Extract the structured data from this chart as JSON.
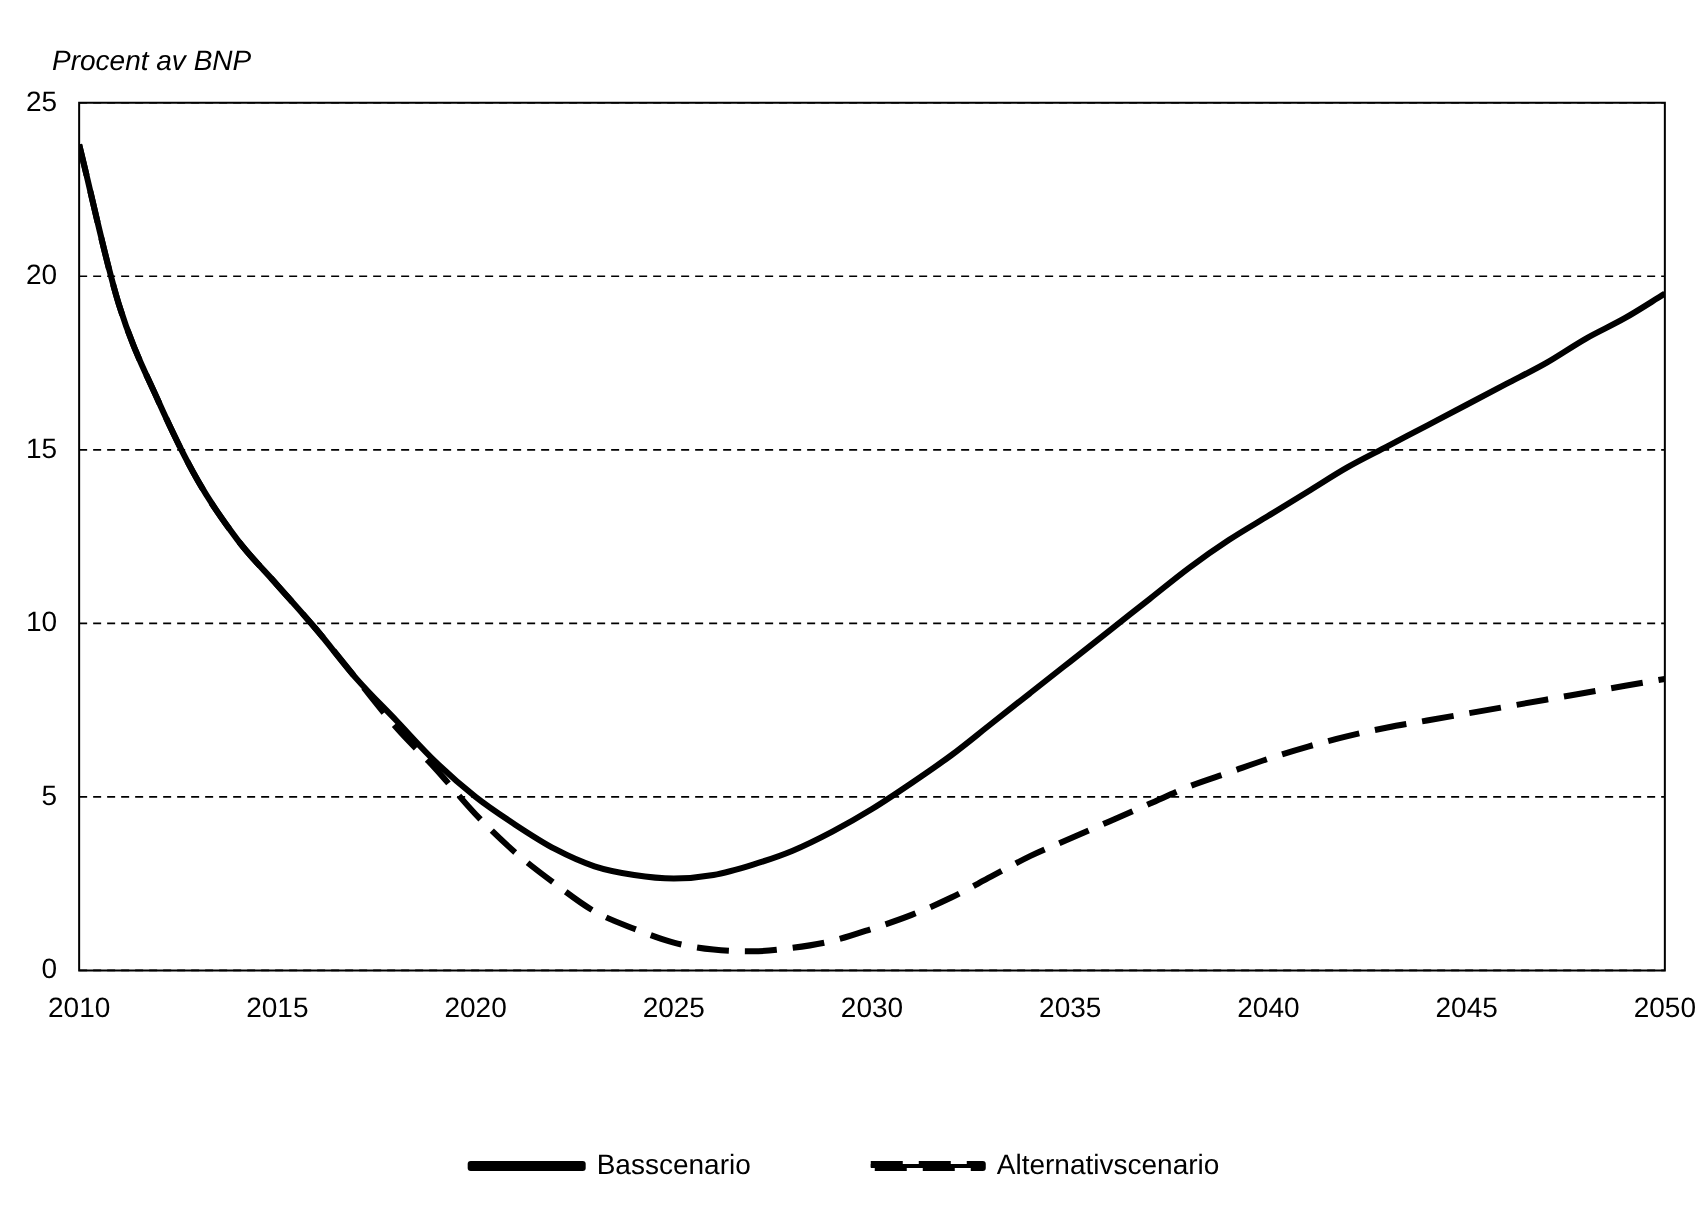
{
  "chart_data": {
    "type": "line",
    "ylabel": "Procent av BNP",
    "x": [
      2010,
      2011,
      2012,
      2013,
      2014,
      2015,
      2016,
      2017,
      2018,
      2019,
      2020,
      2021,
      2022,
      2023,
      2024,
      2025,
      2026,
      2027,
      2028,
      2029,
      2030,
      2031,
      2032,
      2033,
      2034,
      2035,
      2036,
      2037,
      2038,
      2039,
      2040,
      2041,
      2042,
      2043,
      2044,
      2045,
      2046,
      2047,
      2048,
      2049,
      2050
    ],
    "series": [
      {
        "name": "Basscenario",
        "color": "#000000",
        "line_style": "solid",
        "values": [
          23.8,
          19.2,
          16.4,
          14.1,
          12.4,
          11.1,
          9.8,
          8.4,
          7.2,
          6.0,
          5.0,
          4.2,
          3.5,
          3.0,
          2.75,
          2.65,
          2.75,
          3.05,
          3.45,
          4.0,
          4.65,
          5.4,
          6.2,
          7.1,
          8.0,
          8.9,
          9.8,
          10.7,
          11.6,
          12.4,
          13.1,
          13.8,
          14.5,
          15.1,
          15.7,
          16.3,
          16.9,
          17.5,
          18.2,
          18.8,
          19.5
        ]
      },
      {
        "name": "Alternativscenario",
        "color": "#000000",
        "line_style": "dashed",
        "values": [
          23.8,
          19.2,
          16.4,
          14.1,
          12.4,
          11.1,
          9.8,
          8.4,
          7.0,
          5.8,
          4.5,
          3.4,
          2.5,
          1.7,
          1.2,
          0.8,
          0.6,
          0.55,
          0.65,
          0.85,
          1.2,
          1.6,
          2.1,
          2.7,
          3.3,
          3.8,
          4.3,
          4.8,
          5.3,
          5.7,
          6.1,
          6.45,
          6.75,
          7.0,
          7.2,
          7.4,
          7.6,
          7.8,
          8.0,
          8.2,
          8.4
        ]
      }
    ],
    "xlim": [
      2010,
      2050
    ],
    "xticks": [
      2010,
      2015,
      2020,
      2025,
      2030,
      2035,
      2040,
      2045,
      2050
    ],
    "ylim": [
      0,
      25
    ],
    "yticks": [
      0,
      5,
      10,
      15,
      20,
      25
    ],
    "grid": "y",
    "legend": "bottom",
    "marker": "none"
  }
}
